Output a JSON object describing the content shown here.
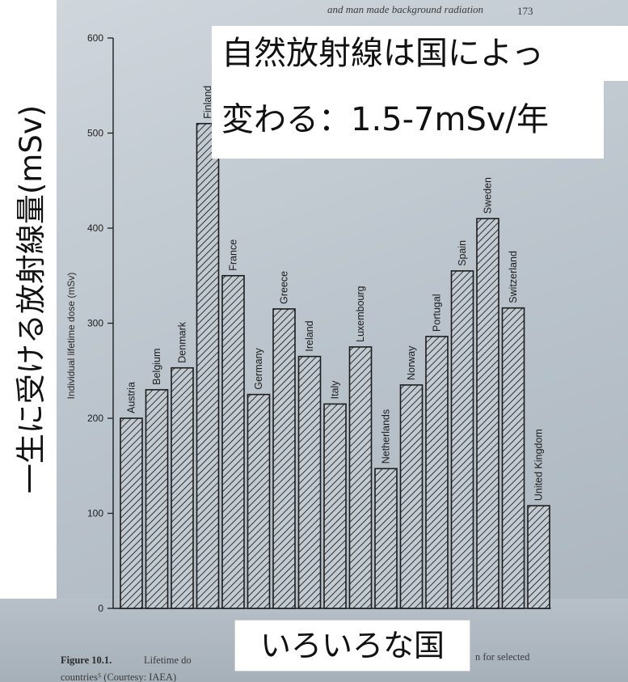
{
  "slide": {
    "title_line1": "自然放射線は国によっ",
    "title_line2": "変わる：1.5-7mSv/年",
    "ylabel_jp": "一生に受ける放射線量(mSv)",
    "bottom_label": "いろいろな国"
  },
  "book": {
    "page_header": "and man made background radiation",
    "page_number": "173",
    "caption_bold": "Figure 10.1.",
    "caption_line1_left": "Lifetime do",
    "caption_line1_right": "n for selected",
    "caption_line2": "countries⁵ (Courtesy: IAEA)"
  },
  "chart_data": {
    "type": "bar",
    "title": "",
    "xlabel": "",
    "ylabel": "Individual lifetime dose (mSv)",
    "ylim": [
      0,
      600
    ],
    "yticks": [
      0,
      100,
      200,
      300,
      400,
      500,
      600
    ],
    "categories": [
      "Austria",
      "Belgium",
      "Denmark",
      "Finland",
      "France",
      "Germany",
      "Greece",
      "Ireland",
      "Italy",
      "Luxembourg",
      "Netherlands",
      "Norway",
      "Portugal",
      "Spain",
      "Sweden",
      "Switzerland",
      "United Kingdom"
    ],
    "values": [
      200,
      230,
      253,
      510,
      350,
      225,
      315,
      265,
      215,
      275,
      147,
      235,
      286,
      355,
      410,
      316,
      108
    ],
    "grid": false,
    "legend": "none"
  }
}
